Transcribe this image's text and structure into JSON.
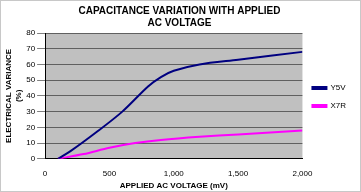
{
  "chart_data": {
    "type": "line",
    "title": "CAPACITANCE VARIATION WITH APPLIED AC VOLTAGE",
    "x_label": "APPLIED AC VOLTAGE (mV)",
    "y_label": "ELECTRICAL VARIANCE (%)",
    "series": [
      {
        "name": "Y5V",
        "color": "#000080",
        "x": [
          100,
          200,
          400,
          600,
          800,
          900,
          1000,
          1200,
          1500,
          2000
        ],
        "values": [
          0,
          5,
          17,
          30,
          46,
          52,
          56,
          60,
          63,
          68
        ]
      },
      {
        "name": "X7R",
        "color": "#ff00ff",
        "x": [
          100,
          300,
          500,
          700,
          900,
          1200,
          1500,
          2000
        ],
        "values": [
          0,
          3,
          7,
          10,
          12,
          14,
          15.5,
          18
        ]
      }
    ],
    "xlim": [
      0,
      2000
    ],
    "xticks": [
      0,
      500,
      1000,
      1500,
      2000
    ],
    "ylim": [
      0,
      80
    ],
    "yticks": [
      0,
      10,
      20,
      30,
      40,
      50,
      60,
      70,
      80
    ],
    "grid": true,
    "legend": "right"
  }
}
